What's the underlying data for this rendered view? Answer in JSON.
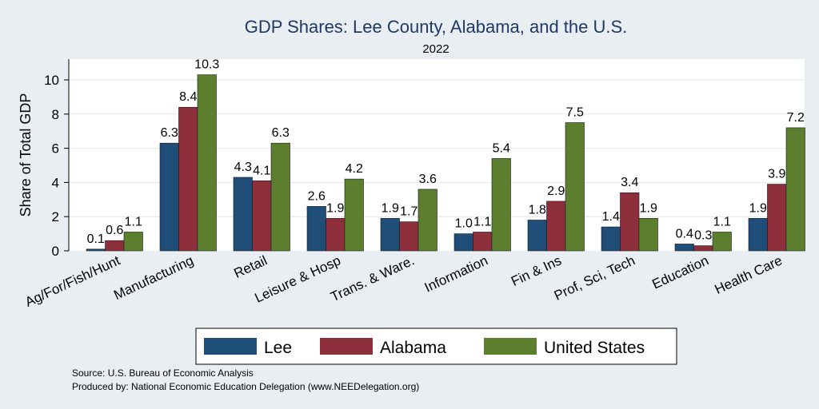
{
  "chart_data": {
    "type": "bar",
    "title": "GDP Shares: Lee County, Alabama, and the U.S.",
    "subtitle": "2022",
    "xlabel": "",
    "ylabel": "Share of Total GDP",
    "ylim": [
      0,
      11
    ],
    "yticks": [
      0,
      2,
      4,
      6,
      8,
      10
    ],
    "grid": true,
    "legend_position": "bottom",
    "categories": [
      "Ag/For/Fish/Hunt",
      "Manufacturing",
      "Retail",
      "Leisure & Hosp",
      "Trans. & Ware.",
      "Information",
      "Fin & Ins",
      "Prof, Sci, Tech",
      "Education",
      "Health Care"
    ],
    "series": [
      {
        "name": "Lee",
        "color": "#1f4e79",
        "values": [
          0.1,
          6.3,
          4.3,
          2.6,
          1.9,
          1.0,
          1.8,
          1.4,
          0.4,
          1.9
        ],
        "labels": [
          "0.1",
          "6.3",
          "4.3",
          "2.6",
          "1.9",
          "1.0",
          "1.8",
          "1.4",
          "0.4",
          "1.9"
        ]
      },
      {
        "name": "Alabama",
        "color": "#8e2f3c",
        "values": [
          0.6,
          8.4,
          4.1,
          1.9,
          1.7,
          1.1,
          2.9,
          3.4,
          0.3,
          3.9
        ],
        "labels": [
          "0.6",
          "8.4",
          "4.1",
          "1.9",
          "1.7",
          "1.1",
          "2.9",
          "3.4",
          "0.3",
          "3.9"
        ]
      },
      {
        "name": "United States",
        "color": "#5b7f2e",
        "values": [
          1.1,
          10.3,
          6.3,
          4.2,
          3.6,
          5.4,
          7.5,
          1.9,
          1.1,
          7.2
        ],
        "labels": [
          "1.1",
          "10.3",
          "6.3",
          "4.2",
          "3.6",
          "5.4",
          "7.5",
          "1.9",
          "1.1",
          "7.2"
        ]
      }
    ]
  },
  "footer": {
    "source": "Source: U.S. Bureau of Economic Analysis",
    "produced_by": "Produced by: National Economic Education Delegation (www.NEEDelegation.org)"
  }
}
